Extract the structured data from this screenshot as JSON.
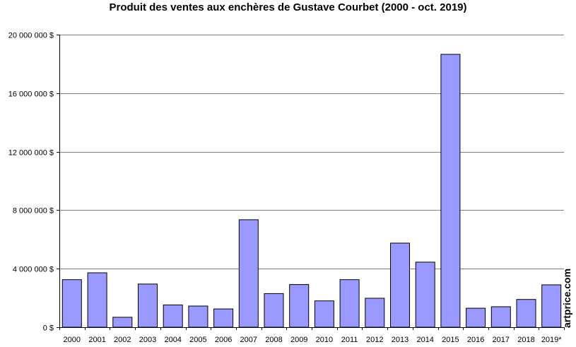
{
  "chart_data": {
    "type": "bar",
    "title": "Produit des ventes aux enchères de Gustave Courbet (2000 - oct. 2019)",
    "xlabel": "",
    "ylabel": "",
    "categories": [
      "2000",
      "2001",
      "2002",
      "2003",
      "2004",
      "2005",
      "2006",
      "2007",
      "2008",
      "2009",
      "2010",
      "2011",
      "2012",
      "2013",
      "2014",
      "2015",
      "2016",
      "2017",
      "2018",
      "2019*"
    ],
    "values": [
      3250000,
      3720000,
      680000,
      2950000,
      1520000,
      1450000,
      1250000,
      7350000,
      2300000,
      2920000,
      1800000,
      3250000,
      1980000,
      5750000,
      4450000,
      18650000,
      1300000,
      1400000,
      1900000,
      2900000
    ],
    "ylim": [
      0,
      20000000
    ],
    "yticks": [
      0,
      4000000,
      8000000,
      12000000,
      16000000,
      20000000
    ],
    "ytick_labels": [
      "0 $",
      "4 000 000 $",
      "8 000 000 $",
      "12 000 000 $",
      "16 000 000 $",
      "20 000 000 $"
    ],
    "grid": true,
    "bar_color": "#9999ff",
    "bar_edge_color": "#000000"
  },
  "watermark": "artprice.com"
}
